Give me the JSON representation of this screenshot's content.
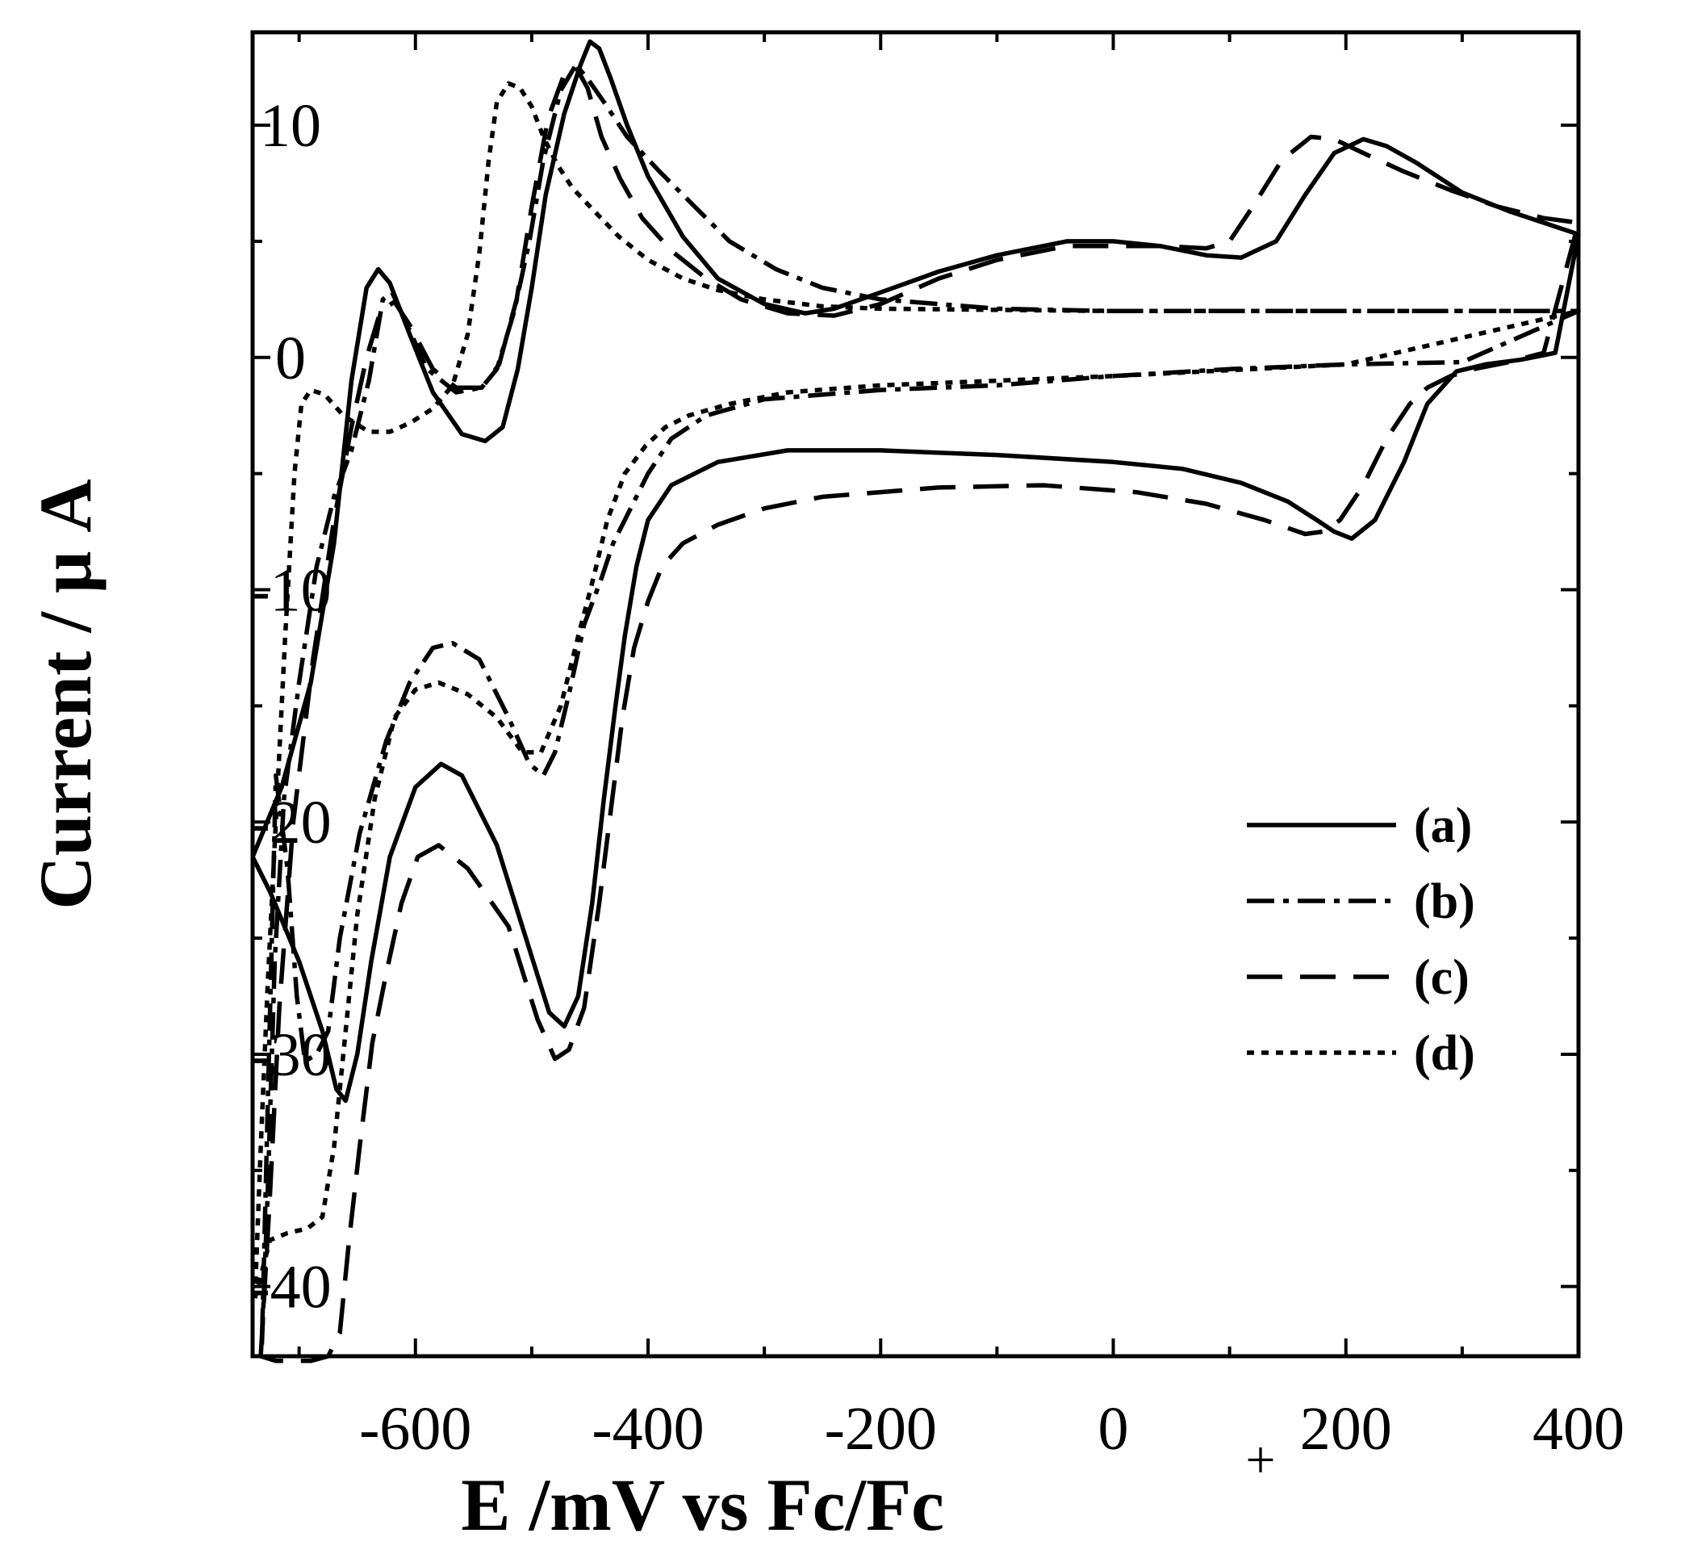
{
  "chart_data": {
    "type": "line",
    "title": "",
    "xlabel": "E /mV vs Fc/Fc",
    "xlabel_superscript": "+",
    "ylabel": "Current / μ A",
    "xlim": [
      -740,
      400
    ],
    "ylim": [
      -43,
      14
    ],
    "grid": false,
    "legend_position": "lower-right",
    "x_ticks": [
      -600,
      -400,
      -200,
      0,
      200,
      400
    ],
    "x_tick_labels": [
      "-600",
      "-400",
      "-200",
      "0",
      "200",
      "400"
    ],
    "y_ticks": [
      10,
      0,
      -10,
      -20,
      -30,
      -40
    ],
    "y_tick_labels": [
      "10",
      "0",
      "-10",
      "-20",
      "-30",
      "-40"
    ],
    "series": [
      {
        "name": "(a)",
        "style": "solid",
        "forward": [
          [
            -740,
            -21.5
          ],
          [
            -715,
            -18.5
          ],
          [
            -690,
            -14
          ],
          [
            -670,
            -8
          ],
          [
            -655,
            -1
          ],
          [
            -642,
            3
          ],
          [
            -632,
            3.8
          ],
          [
            -622,
            3.2
          ],
          [
            -605,
            1
          ],
          [
            -585,
            -1.5
          ],
          [
            -560,
            -3.3
          ],
          [
            -540,
            -3.6
          ],
          [
            -525,
            -3
          ],
          [
            -512,
            -0.5
          ],
          [
            -500,
            3
          ],
          [
            -488,
            7
          ],
          [
            -472,
            10.5
          ],
          [
            -458,
            12.6
          ],
          [
            -450,
            13.6
          ],
          [
            -442,
            13.3
          ],
          [
            -432,
            12
          ],
          [
            -418,
            10
          ],
          [
            -400,
            7.8
          ],
          [
            -370,
            5.2
          ],
          [
            -340,
            3.4
          ],
          [
            -300,
            2.3
          ],
          [
            -265,
            1.9
          ],
          [
            -240,
            2.1
          ],
          [
            -200,
            2.8
          ],
          [
            -150,
            3.7
          ],
          [
            -100,
            4.4
          ],
          [
            -40,
            5
          ],
          [
            0,
            5
          ],
          [
            40,
            4.8
          ],
          [
            80,
            4.4
          ],
          [
            110,
            4.3
          ],
          [
            140,
            5
          ],
          [
            165,
            7
          ],
          [
            190,
            8.8
          ],
          [
            215,
            9.4
          ],
          [
            235,
            9.1
          ],
          [
            260,
            8.4
          ],
          [
            300,
            7.1
          ],
          [
            340,
            6.3
          ],
          [
            370,
            5.8
          ],
          [
            400,
            5.3
          ]
        ],
        "reverse": [
          [
            400,
            0.5
          ],
          [
            380,
            0.2
          ],
          [
            350,
            -0.1
          ],
          [
            320,
            -0.3
          ],
          [
            295,
            -0.6
          ],
          [
            270,
            -2
          ],
          [
            250,
            -4.5
          ],
          [
            225,
            -7
          ],
          [
            205,
            -7.8
          ],
          [
            190,
            -7.5
          ],
          [
            175,
            -7
          ],
          [
            150,
            -6.2
          ],
          [
            110,
            -5.4
          ],
          [
            60,
            -4.8
          ],
          [
            0,
            -4.5
          ],
          [
            -100,
            -4.2
          ],
          [
            -200,
            -4
          ],
          [
            -280,
            -4
          ],
          [
            -340,
            -4.5
          ],
          [
            -380,
            -5.5
          ],
          [
            -400,
            -7
          ],
          [
            -410,
            -9
          ],
          [
            -420,
            -12
          ],
          [
            -428,
            -15
          ],
          [
            -438,
            -19
          ],
          [
            -448,
            -23.5
          ],
          [
            -460,
            -27.5
          ],
          [
            -472,
            -28.8
          ],
          [
            -485,
            -28.2
          ],
          [
            -505,
            -25
          ],
          [
            -530,
            -21
          ],
          [
            -560,
            -18
          ],
          [
            -578,
            -17.5
          ],
          [
            -600,
            -18.5
          ],
          [
            -622,
            -21.5
          ],
          [
            -638,
            -26
          ],
          [
            -650,
            -30
          ],
          [
            -660,
            -32
          ],
          [
            -668,
            -31.5
          ],
          [
            -680,
            -29
          ],
          [
            -700,
            -26
          ],
          [
            -725,
            -23
          ],
          [
            -740,
            -21.5
          ]
        ]
      },
      {
        "name": "(b)",
        "style": "dash-dot",
        "forward": [
          [
            -732,
            -42.5
          ],
          [
            -727,
            -36
          ],
          [
            -721,
            -26
          ],
          [
            -713,
            -19
          ],
          [
            -700,
            -14
          ],
          [
            -685,
            -9
          ],
          [
            -670,
            -6
          ],
          [
            -655,
            -4
          ],
          [
            -640,
            -1
          ],
          [
            -628,
            2.5
          ],
          [
            -620,
            2.8
          ],
          [
            -608,
            1.5
          ],
          [
            -590,
            -0.5
          ],
          [
            -565,
            -1.5
          ],
          [
            -543,
            -1.3
          ],
          [
            -530,
            -0.5
          ],
          [
            -515,
            2
          ],
          [
            -502,
            5
          ],
          [
            -490,
            8.5
          ],
          [
            -475,
            11.5
          ],
          [
            -462,
            12.6
          ],
          [
            -452,
            12
          ],
          [
            -438,
            11
          ],
          [
            -418,
            9.5
          ],
          [
            -390,
            8
          ],
          [
            -360,
            6.5
          ],
          [
            -330,
            5
          ],
          [
            -290,
            3.8
          ],
          [
            -250,
            3
          ],
          [
            -200,
            2.5
          ],
          [
            -150,
            2.3
          ],
          [
            -100,
            2.1
          ],
          [
            0,
            2
          ],
          [
            100,
            2
          ],
          [
            200,
            2
          ],
          [
            300,
            2
          ],
          [
            400,
            2
          ]
        ],
        "reverse": [
          [
            400,
            0
          ],
          [
            300,
            -0.2
          ],
          [
            200,
            -0.3
          ],
          [
            100,
            -0.5
          ],
          [
            0,
            -0.8
          ],
          [
            -100,
            -1.2
          ],
          [
            -200,
            -1.4
          ],
          [
            -300,
            -1.8
          ],
          [
            -350,
            -2.5
          ],
          [
            -380,
            -3.5
          ],
          [
            -400,
            -5
          ],
          [
            -420,
            -7
          ],
          [
            -430,
            -8
          ],
          [
            -440,
            -9.5
          ],
          [
            -455,
            -11.5
          ],
          [
            -468,
            -14.5
          ],
          [
            -480,
            -17
          ],
          [
            -490,
            -18
          ],
          [
            -502,
            -17.5
          ],
          [
            -520,
            -15.5
          ],
          [
            -545,
            -13
          ],
          [
            -568,
            -12.3
          ],
          [
            -585,
            -12.5
          ],
          [
            -605,
            -14
          ],
          [
            -625,
            -16.5
          ],
          [
            -648,
            -20.5
          ],
          [
            -665,
            -25
          ],
          [
            -675,
            -29
          ],
          [
            -685,
            -30
          ],
          [
            -695,
            -30.3
          ],
          [
            -702,
            -27.5
          ],
          [
            -710,
            -22
          ],
          [
            -720,
            -18
          ],
          [
            -732,
            -42.5
          ]
        ]
      },
      {
        "name": "(c)",
        "style": "dashed",
        "forward": [
          [
            -733,
            -43
          ],
          [
            -725,
            -36
          ],
          [
            -717,
            -28
          ],
          [
            -705,
            -20
          ],
          [
            -688,
            -13
          ],
          [
            -670,
            -7
          ],
          [
            -655,
            -3
          ],
          [
            -642,
            0
          ],
          [
            -630,
            2
          ],
          [
            -618,
            2.4
          ],
          [
            -605,
            1.4
          ],
          [
            -585,
            -0.5
          ],
          [
            -565,
            -1.3
          ],
          [
            -543,
            -1.3
          ],
          [
            -528,
            -0.3
          ],
          [
            -513,
            2.5
          ],
          [
            -500,
            6.5
          ],
          [
            -486,
            10.3
          ],
          [
            -472,
            12.2
          ],
          [
            -462,
            12.5
          ],
          [
            -452,
            11.6
          ],
          [
            -440,
            9.5
          ],
          [
            -424,
            7.7
          ],
          [
            -405,
            6
          ],
          [
            -380,
            4.6
          ],
          [
            -350,
            3.4
          ],
          [
            -320,
            2.5
          ],
          [
            -280,
            1.9
          ],
          [
            -240,
            1.8
          ],
          [
            -200,
            2.3
          ],
          [
            -150,
            3.4
          ],
          [
            -100,
            4.2
          ],
          [
            -40,
            4.8
          ],
          [
            0,
            4.8
          ],
          [
            40,
            4.8
          ],
          [
            80,
            4.7
          ],
          [
            100,
            5
          ],
          [
            120,
            6.5
          ],
          [
            145,
            8.5
          ],
          [
            170,
            9.5
          ],
          [
            190,
            9.4
          ],
          [
            215,
            8.8
          ],
          [
            250,
            8
          ],
          [
            290,
            7.2
          ],
          [
            330,
            6.5
          ],
          [
            370,
            6
          ],
          [
            400,
            5.8
          ]
        ],
        "reverse": [
          [
            400,
            0.5
          ],
          [
            370,
            0.2
          ],
          [
            340,
            -0.2
          ],
          [
            310,
            -0.5
          ],
          [
            290,
            -0.8
          ],
          [
            270,
            -1.3
          ],
          [
            255,
            -2
          ],
          [
            235,
            -3.5
          ],
          [
            215,
            -5.5
          ],
          [
            195,
            -7
          ],
          [
            180,
            -7.5
          ],
          [
            165,
            -7.6
          ],
          [
            130,
            -7
          ],
          [
            80,
            -6.3
          ],
          [
            20,
            -5.8
          ],
          [
            -60,
            -5.5
          ],
          [
            -150,
            -5.6
          ],
          [
            -250,
            -6
          ],
          [
            -300,
            -6.5
          ],
          [
            -340,
            -7.2
          ],
          [
            -370,
            -8
          ],
          [
            -388,
            -9
          ],
          [
            -400,
            -10.5
          ],
          [
            -412,
            -12.5
          ],
          [
            -422,
            -15.5
          ],
          [
            -432,
            -19.5
          ],
          [
            -442,
            -23.5
          ],
          [
            -455,
            -28
          ],
          [
            -468,
            -29.8
          ],
          [
            -480,
            -30.2
          ],
          [
            -495,
            -28.5
          ],
          [
            -520,
            -24.5
          ],
          [
            -555,
            -22
          ],
          [
            -580,
            -21
          ],
          [
            -598,
            -21.5
          ],
          [
            -612,
            -23.5
          ],
          [
            -625,
            -26.5
          ],
          [
            -637,
            -29.5
          ],
          [
            -648,
            -34
          ],
          [
            -657,
            -38
          ],
          [
            -665,
            -42
          ],
          [
            -675,
            -43
          ],
          [
            -690,
            -43.2
          ],
          [
            -720,
            -43.2
          ],
          [
            -733,
            -43
          ]
        ]
      },
      {
        "name": "(d)",
        "style": "dotted",
        "forward": [
          [
            -738,
            -40.5
          ],
          [
            -733,
            -34
          ],
          [
            -727,
            -27
          ],
          [
            -720,
            -20
          ],
          [
            -712,
            -12
          ],
          [
            -704,
            -5
          ],
          [
            -698,
            -2
          ],
          [
            -690,
            -1.4
          ],
          [
            -678,
            -1.6
          ],
          [
            -662,
            -2.5
          ],
          [
            -640,
            -3.2
          ],
          [
            -622,
            -3.2
          ],
          [
            -604,
            -2.8
          ],
          [
            -585,
            -2.2
          ],
          [
            -568,
            -1.2
          ],
          [
            -555,
            1
          ],
          [
            -545,
            4.5
          ],
          [
            -537,
            8.5
          ],
          [
            -530,
            11
          ],
          [
            -520,
            11.8
          ],
          [
            -510,
            11.6
          ],
          [
            -500,
            10.8
          ],
          [
            -490,
            9.5
          ],
          [
            -478,
            8.3
          ],
          [
            -465,
            7.3
          ],
          [
            -450,
            6.5
          ],
          [
            -425,
            5.2
          ],
          [
            -400,
            4.2
          ],
          [
            -370,
            3.4
          ],
          [
            -340,
            2.9
          ],
          [
            -300,
            2.5
          ],
          [
            -250,
            2.2
          ],
          [
            -200,
            2.1
          ],
          [
            0,
            2
          ],
          [
            400,
            2
          ]
        ],
        "reverse": [
          [
            400,
            0
          ],
          [
            200,
            -0.3
          ],
          [
            0,
            -0.8
          ],
          [
            -100,
            -1
          ],
          [
            -200,
            -1.2
          ],
          [
            -280,
            -1.5
          ],
          [
            -330,
            -2
          ],
          [
            -365,
            -2.5
          ],
          [
            -385,
            -3
          ],
          [
            -402,
            -3.8
          ],
          [
            -420,
            -5
          ],
          [
            -435,
            -7
          ],
          [
            -447,
            -9.5
          ],
          [
            -460,
            -12
          ],
          [
            -475,
            -15
          ],
          [
            -492,
            -17
          ],
          [
            -508,
            -17
          ],
          [
            -530,
            -15.5
          ],
          [
            -555,
            -14.5
          ],
          [
            -580,
            -14
          ],
          [
            -600,
            -14.3
          ],
          [
            -618,
            -15.5
          ],
          [
            -635,
            -19
          ],
          [
            -650,
            -24
          ],
          [
            -660,
            -29
          ],
          [
            -670,
            -34
          ],
          [
            -680,
            -37
          ],
          [
            -693,
            -37.5
          ],
          [
            -710,
            -37.7
          ],
          [
            -725,
            -38
          ],
          [
            -738,
            -40.5
          ]
        ]
      }
    ]
  }
}
